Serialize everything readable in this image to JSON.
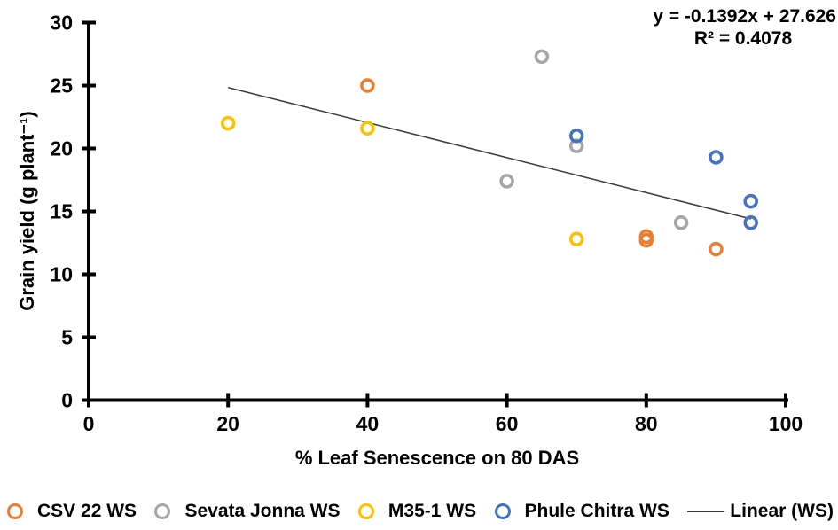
{
  "chart_data": {
    "type": "scatter",
    "title": "",
    "xlabel": "% Leaf Senescence on 80 DAS",
    "ylabel": "Grain yield (g plant⁻¹)",
    "xlim": [
      0,
      100
    ],
    "ylim": [
      0,
      30
    ],
    "xticks": [
      0,
      20,
      40,
      60,
      80,
      100
    ],
    "yticks": [
      0,
      5,
      10,
      15,
      20,
      25,
      30
    ],
    "grid": false,
    "legend_position": "bottom",
    "axis_color": "#000000",
    "series": [
      {
        "name": "CSV 22 WS",
        "color": "#ED7D31",
        "points": [
          [
            40,
            25
          ],
          [
            80,
            13
          ],
          [
            80,
            12.7
          ],
          [
            90,
            12
          ]
        ]
      },
      {
        "name": "Sevata Jonna WS",
        "color": "#A6A6A6",
        "points": [
          [
            65,
            27.3
          ],
          [
            70,
            20.2
          ],
          [
            60,
            17.4
          ],
          [
            85,
            14.1
          ]
        ]
      },
      {
        "name": "M35-1 WS",
        "color": "#FFC000",
        "points": [
          [
            20,
            22
          ],
          [
            40,
            21.6
          ],
          [
            70,
            12.8
          ]
        ]
      },
      {
        "name": "Phule Chitra WS",
        "color": "#4472C4",
        "points": [
          [
            70,
            21
          ],
          [
            90,
            19.3
          ],
          [
            95,
            15.8
          ],
          [
            95,
            14.1
          ]
        ]
      }
    ],
    "trendline": {
      "label": "Linear (WS)",
      "slope": -0.1392,
      "intercept": 27.626,
      "x_start": 20,
      "x_end": 95,
      "color": "#3B3B3B"
    },
    "annotation": {
      "equation": "y = -0.1392x + 27.626",
      "r_squared": "R² = 0.4078"
    }
  }
}
